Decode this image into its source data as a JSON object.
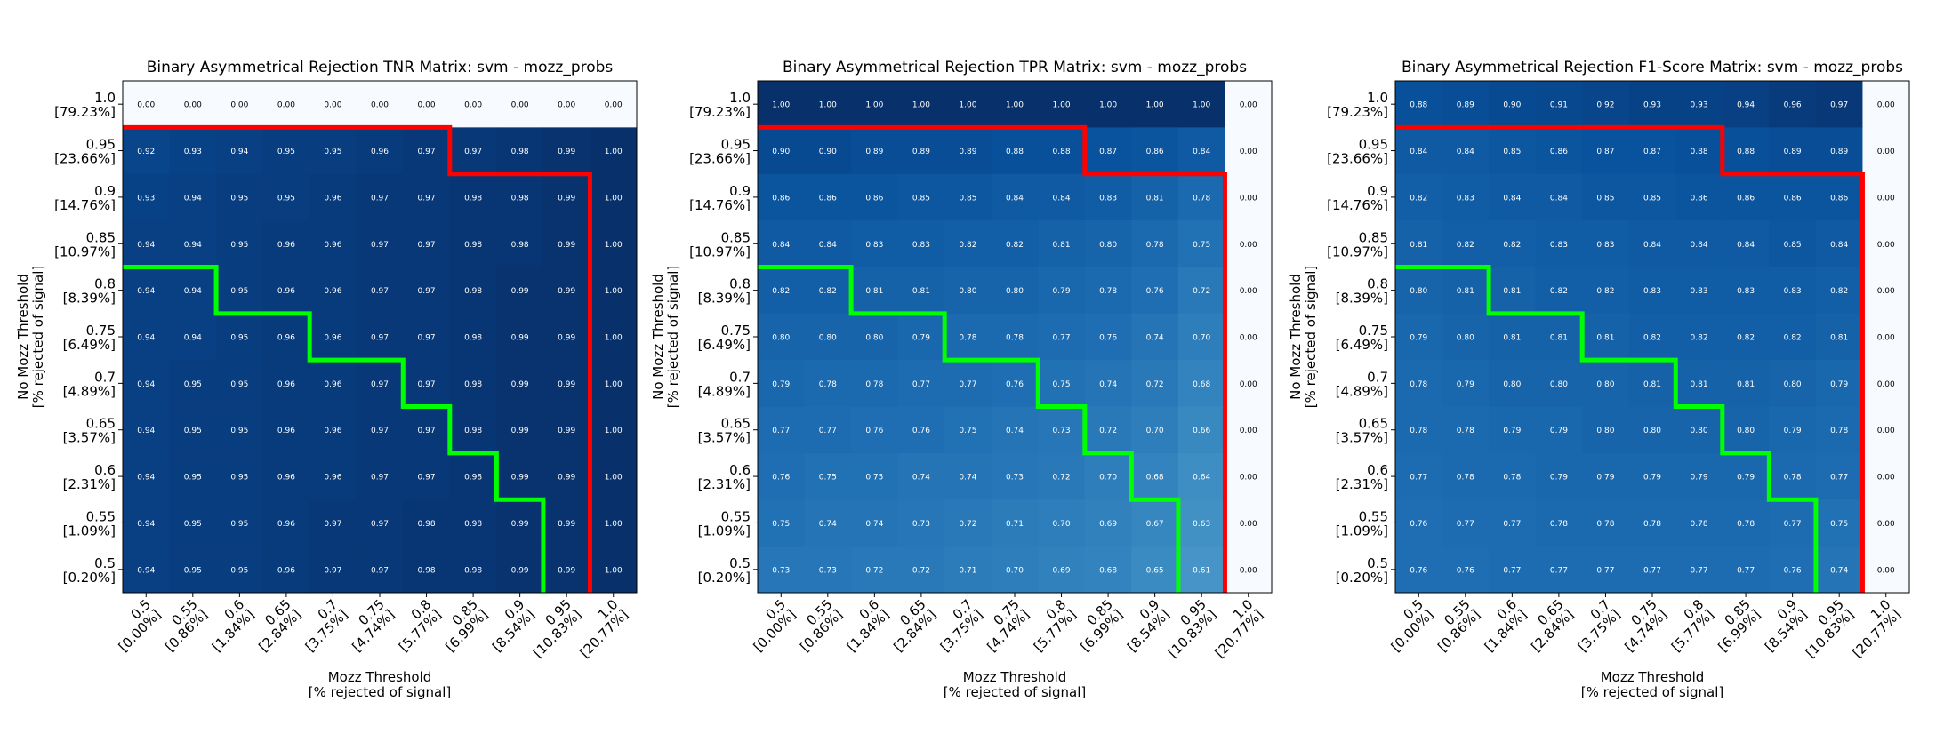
{
  "chart_data": [
    {
      "type": "heatmap",
      "title": "Binary Asymmetrical Rejection TNR Matrix: svm - mozz_probs",
      "xlabel": "Mozz Threshold\n[% rejected of signal]",
      "ylabel": "No Mozz Threshold\n[% rejected of signal]",
      "x_ticks": [
        [
          "0.5",
          "[0.00%]"
        ],
        [
          "0.55",
          "[0.86%]"
        ],
        [
          "0.6",
          "[1.84%]"
        ],
        [
          "0.65",
          "[2.84%]"
        ],
        [
          "0.7",
          "[3.75%]"
        ],
        [
          "0.75",
          "[4.74%]"
        ],
        [
          "0.8",
          "[5.77%]"
        ],
        [
          "0.85",
          "[6.99%]"
        ],
        [
          "0.9",
          "[8.54%]"
        ],
        [
          "0.95",
          "[10.83%]"
        ],
        [
          "1.0",
          "[20.77%]"
        ]
      ],
      "y_ticks": [
        [
          "1.0",
          "[79.23%]"
        ],
        [
          "0.95",
          "[23.66%]"
        ],
        [
          "0.9",
          "[14.76%]"
        ],
        [
          "0.85",
          "[10.97%]"
        ],
        [
          "0.8",
          "[8.39%]"
        ],
        [
          "0.75",
          "[6.49%]"
        ],
        [
          "0.7",
          "[4.89%]"
        ],
        [
          "0.65",
          "[3.57%]"
        ],
        [
          "0.6",
          "[2.31%]"
        ],
        [
          "0.55",
          "[1.09%]"
        ],
        [
          "0.5",
          "[0.20%]"
        ]
      ],
      "values": [
        [
          "0.00",
          "0.00",
          "0.00",
          "0.00",
          "0.00",
          "0.00",
          "0.00",
          "0.00",
          "0.00",
          "0.00",
          "0.00"
        ],
        [
          "0.92",
          "0.93",
          "0.94",
          "0.95",
          "0.95",
          "0.96",
          "0.97",
          "0.97",
          "0.98",
          "0.99",
          "1.00"
        ],
        [
          "0.93",
          "0.94",
          "0.95",
          "0.95",
          "0.96",
          "0.97",
          "0.97",
          "0.98",
          "0.98",
          "0.99",
          "1.00"
        ],
        [
          "0.94",
          "0.94",
          "0.95",
          "0.96",
          "0.96",
          "0.97",
          "0.97",
          "0.98",
          "0.98",
          "0.99",
          "1.00"
        ],
        [
          "0.94",
          "0.94",
          "0.95",
          "0.96",
          "0.96",
          "0.97",
          "0.97",
          "0.98",
          "0.99",
          "0.99",
          "1.00"
        ],
        [
          "0.94",
          "0.94",
          "0.95",
          "0.96",
          "0.96",
          "0.97",
          "0.97",
          "0.98",
          "0.99",
          "0.99",
          "1.00"
        ],
        [
          "0.94",
          "0.95",
          "0.95",
          "0.96",
          "0.96",
          "0.97",
          "0.97",
          "0.98",
          "0.99",
          "0.99",
          "1.00"
        ],
        [
          "0.94",
          "0.95",
          "0.95",
          "0.96",
          "0.96",
          "0.97",
          "0.97",
          "0.98",
          "0.99",
          "0.99",
          "1.00"
        ],
        [
          "0.94",
          "0.95",
          "0.95",
          "0.96",
          "0.96",
          "0.97",
          "0.97",
          "0.98",
          "0.99",
          "0.99",
          "1.00"
        ],
        [
          "0.94",
          "0.95",
          "0.95",
          "0.96",
          "0.97",
          "0.97",
          "0.98",
          "0.98",
          "0.99",
          "0.99",
          "1.00"
        ],
        [
          "0.94",
          "0.95",
          "0.95",
          "0.96",
          "0.97",
          "0.97",
          "0.98",
          "0.98",
          "0.99",
          "0.99",
          "1.00"
        ]
      ],
      "color_range": [
        0.0,
        1.0
      ],
      "colormap": [
        "#f7fbff",
        "#08306b"
      ],
      "red_boundary": [
        [
          0,
          1
        ],
        [
          7,
          1
        ],
        [
          7,
          2
        ],
        [
          10,
          2
        ],
        [
          10,
          11
        ]
      ],
      "green_boundary": [
        [
          0,
          4
        ],
        [
          2,
          4
        ],
        [
          2,
          5
        ],
        [
          4,
          5
        ],
        [
          4,
          6
        ],
        [
          6,
          6
        ],
        [
          6,
          7
        ],
        [
          7,
          7
        ],
        [
          7,
          8
        ],
        [
          8,
          8
        ],
        [
          8,
          9
        ],
        [
          9,
          9
        ],
        [
          9,
          11
        ]
      ],
      "boundary_colors": {
        "red": "#ff0000",
        "green": "#00ff00"
      }
    },
    {
      "type": "heatmap",
      "title": "Binary Asymmetrical Rejection TPR Matrix: svm - mozz_probs",
      "xlabel": "Mozz Threshold\n[% rejected of signal]",
      "ylabel": "No Mozz Threshold\n[% rejected of signal]",
      "x_ticks": [
        [
          "0.5",
          "[0.00%]"
        ],
        [
          "0.55",
          "[0.86%]"
        ],
        [
          "0.6",
          "[1.84%]"
        ],
        [
          "0.65",
          "[2.84%]"
        ],
        [
          "0.7",
          "[3.75%]"
        ],
        [
          "0.75",
          "[4.74%]"
        ],
        [
          "0.8",
          "[5.77%]"
        ],
        [
          "0.85",
          "[6.99%]"
        ],
        [
          "0.9",
          "[8.54%]"
        ],
        [
          "0.95",
          "[10.83%]"
        ],
        [
          "1.0",
          "[20.77%]"
        ]
      ],
      "y_ticks": [
        [
          "1.0",
          "[79.23%]"
        ],
        [
          "0.95",
          "[23.66%]"
        ],
        [
          "0.9",
          "[14.76%]"
        ],
        [
          "0.85",
          "[10.97%]"
        ],
        [
          "0.8",
          "[8.39%]"
        ],
        [
          "0.75",
          "[6.49%]"
        ],
        [
          "0.7",
          "[4.89%]"
        ],
        [
          "0.65",
          "[3.57%]"
        ],
        [
          "0.6",
          "[2.31%]"
        ],
        [
          "0.55",
          "[1.09%]"
        ],
        [
          "0.5",
          "[0.20%]"
        ]
      ],
      "values": [
        [
          "1.00",
          "1.00",
          "1.00",
          "1.00",
          "1.00",
          "1.00",
          "1.00",
          "1.00",
          "1.00",
          "1.00",
          "0.00"
        ],
        [
          "0.90",
          "0.90",
          "0.89",
          "0.89",
          "0.89",
          "0.88",
          "0.88",
          "0.87",
          "0.86",
          "0.84",
          "0.00"
        ],
        [
          "0.86",
          "0.86",
          "0.86",
          "0.85",
          "0.85",
          "0.84",
          "0.84",
          "0.83",
          "0.81",
          "0.78",
          "0.00"
        ],
        [
          "0.84",
          "0.84",
          "0.83",
          "0.83",
          "0.82",
          "0.82",
          "0.81",
          "0.80",
          "0.78",
          "0.75",
          "0.00"
        ],
        [
          "0.82",
          "0.82",
          "0.81",
          "0.81",
          "0.80",
          "0.80",
          "0.79",
          "0.78",
          "0.76",
          "0.72",
          "0.00"
        ],
        [
          "0.80",
          "0.80",
          "0.80",
          "0.79",
          "0.78",
          "0.78",
          "0.77",
          "0.76",
          "0.74",
          "0.70",
          "0.00"
        ],
        [
          "0.79",
          "0.78",
          "0.78",
          "0.77",
          "0.77",
          "0.76",
          "0.75",
          "0.74",
          "0.72",
          "0.68",
          "0.00"
        ],
        [
          "0.77",
          "0.77",
          "0.76",
          "0.76",
          "0.75",
          "0.74",
          "0.73",
          "0.72",
          "0.70",
          "0.66",
          "0.00"
        ],
        [
          "0.76",
          "0.75",
          "0.75",
          "0.74",
          "0.74",
          "0.73",
          "0.72",
          "0.70",
          "0.68",
          "0.64",
          "0.00"
        ],
        [
          "0.75",
          "0.74",
          "0.74",
          "0.73",
          "0.72",
          "0.71",
          "0.70",
          "0.69",
          "0.67",
          "0.63",
          "0.00"
        ],
        [
          "0.73",
          "0.73",
          "0.72",
          "0.72",
          "0.71",
          "0.70",
          "0.69",
          "0.68",
          "0.65",
          "0.61",
          "0.00"
        ]
      ],
      "color_range": [
        0.0,
        1.0
      ],
      "colormap": [
        "#f7fbff",
        "#08306b"
      ],
      "red_boundary": [
        [
          0,
          1
        ],
        [
          7,
          1
        ],
        [
          7,
          2
        ],
        [
          10,
          2
        ],
        [
          10,
          11
        ]
      ],
      "green_boundary": [
        [
          0,
          4
        ],
        [
          2,
          4
        ],
        [
          2,
          5
        ],
        [
          4,
          5
        ],
        [
          4,
          6
        ],
        [
          6,
          6
        ],
        [
          6,
          7
        ],
        [
          7,
          7
        ],
        [
          7,
          8
        ],
        [
          8,
          8
        ],
        [
          8,
          9
        ],
        [
          9,
          9
        ],
        [
          9,
          11
        ]
      ],
      "boundary_colors": {
        "red": "#ff0000",
        "green": "#00ff00"
      }
    },
    {
      "type": "heatmap",
      "title": "Binary Asymmetrical Rejection F1-Score Matrix: svm - mozz_probs",
      "xlabel": "Mozz Threshold\n[% rejected of signal]",
      "ylabel": "No Mozz Threshold\n[% rejected of signal]",
      "x_ticks": [
        [
          "0.5",
          "[0.00%]"
        ],
        [
          "0.55",
          "[0.86%]"
        ],
        [
          "0.6",
          "[1.84%]"
        ],
        [
          "0.65",
          "[2.84%]"
        ],
        [
          "0.7",
          "[3.75%]"
        ],
        [
          "0.75",
          "[4.74%]"
        ],
        [
          "0.8",
          "[5.77%]"
        ],
        [
          "0.85",
          "[6.99%]"
        ],
        [
          "0.9",
          "[8.54%]"
        ],
        [
          "0.95",
          "[10.83%]"
        ],
        [
          "1.0",
          "[20.77%]"
        ]
      ],
      "y_ticks": [
        [
          "1.0",
          "[79.23%]"
        ],
        [
          "0.95",
          "[23.66%]"
        ],
        [
          "0.9",
          "[14.76%]"
        ],
        [
          "0.85",
          "[10.97%]"
        ],
        [
          "0.8",
          "[8.39%]"
        ],
        [
          "0.75",
          "[6.49%]"
        ],
        [
          "0.7",
          "[4.89%]"
        ],
        [
          "0.65",
          "[3.57%]"
        ],
        [
          "0.6",
          "[2.31%]"
        ],
        [
          "0.55",
          "[1.09%]"
        ],
        [
          "0.5",
          "[0.20%]"
        ]
      ],
      "values": [
        [
          "0.88",
          "0.89",
          "0.90",
          "0.91",
          "0.92",
          "0.93",
          "0.93",
          "0.94",
          "0.96",
          "0.97",
          "0.00"
        ],
        [
          "0.84",
          "0.84",
          "0.85",
          "0.86",
          "0.87",
          "0.87",
          "0.88",
          "0.88",
          "0.89",
          "0.89",
          "0.00"
        ],
        [
          "0.82",
          "0.83",
          "0.84",
          "0.84",
          "0.85",
          "0.85",
          "0.86",
          "0.86",
          "0.86",
          "0.86",
          "0.00"
        ],
        [
          "0.81",
          "0.82",
          "0.82",
          "0.83",
          "0.83",
          "0.84",
          "0.84",
          "0.84",
          "0.85",
          "0.84",
          "0.00"
        ],
        [
          "0.80",
          "0.81",
          "0.81",
          "0.82",
          "0.82",
          "0.83",
          "0.83",
          "0.83",
          "0.83",
          "0.82",
          "0.00"
        ],
        [
          "0.79",
          "0.80",
          "0.81",
          "0.81",
          "0.81",
          "0.82",
          "0.82",
          "0.82",
          "0.82",
          "0.81",
          "0.00"
        ],
        [
          "0.78",
          "0.79",
          "0.80",
          "0.80",
          "0.80",
          "0.81",
          "0.81",
          "0.81",
          "0.80",
          "0.79",
          "0.00"
        ],
        [
          "0.78",
          "0.78",
          "0.79",
          "0.79",
          "0.80",
          "0.80",
          "0.80",
          "0.80",
          "0.79",
          "0.78",
          "0.00"
        ],
        [
          "0.77",
          "0.78",
          "0.78",
          "0.79",
          "0.79",
          "0.79",
          "0.79",
          "0.79",
          "0.78",
          "0.77",
          "0.00"
        ],
        [
          "0.76",
          "0.77",
          "0.77",
          "0.78",
          "0.78",
          "0.78",
          "0.78",
          "0.78",
          "0.77",
          "0.75",
          "0.00"
        ],
        [
          "0.76",
          "0.76",
          "0.77",
          "0.77",
          "0.77",
          "0.77",
          "0.77",
          "0.77",
          "0.76",
          "0.74",
          "0.00"
        ]
      ],
      "color_range": [
        0.0,
        1.0
      ],
      "colormap": [
        "#f7fbff",
        "#08306b"
      ],
      "red_boundary": [
        [
          0,
          1
        ],
        [
          7,
          1
        ],
        [
          7,
          2
        ],
        [
          10,
          2
        ],
        [
          10,
          11
        ]
      ],
      "green_boundary": [
        [
          0,
          4
        ],
        [
          2,
          4
        ],
        [
          2,
          5
        ],
        [
          4,
          5
        ],
        [
          4,
          6
        ],
        [
          6,
          6
        ],
        [
          6,
          7
        ],
        [
          7,
          7
        ],
        [
          7,
          8
        ],
        [
          8,
          8
        ],
        [
          8,
          9
        ],
        [
          9,
          9
        ],
        [
          9,
          11
        ]
      ],
      "boundary_colors": {
        "red": "#ff0000",
        "green": "#00ff00"
      }
    }
  ]
}
